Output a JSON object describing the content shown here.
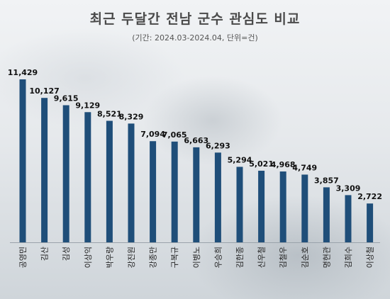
{
  "title": "최근 두달간 전남 군수 관심도 비교",
  "subtitle": "(기간:  2024.03-2024.04, 단위=건)",
  "bar_color": "#1f4e79",
  "chart_data": {
    "type": "bar",
    "categories": [
      "공영민",
      "김산",
      "김성",
      "이상익",
      "박우량",
      "강진원",
      "강종만",
      "구복규",
      "이병노",
      "우승희",
      "김한종",
      "신우철",
      "김철우",
      "김순호",
      "명현관",
      "김희수",
      "이상철"
    ],
    "values": [
      11429,
      10127,
      9615,
      9129,
      8521,
      8329,
      7094,
      7065,
      6663,
      6293,
      5294,
      5021,
      4968,
      4749,
      3857,
      3309,
      2722
    ],
    "value_labels": [
      "11,429",
      "10,127",
      "9,615",
      "9,129",
      "8,521",
      "8,329",
      "7,094",
      "7,065",
      "6,663",
      "6,293",
      "5,294",
      "5,021",
      "4,968",
      "4,749",
      "3,857",
      "3,309",
      "2,722"
    ],
    "ylim": [
      0,
      11429
    ],
    "grid": false,
    "legend": "none"
  }
}
